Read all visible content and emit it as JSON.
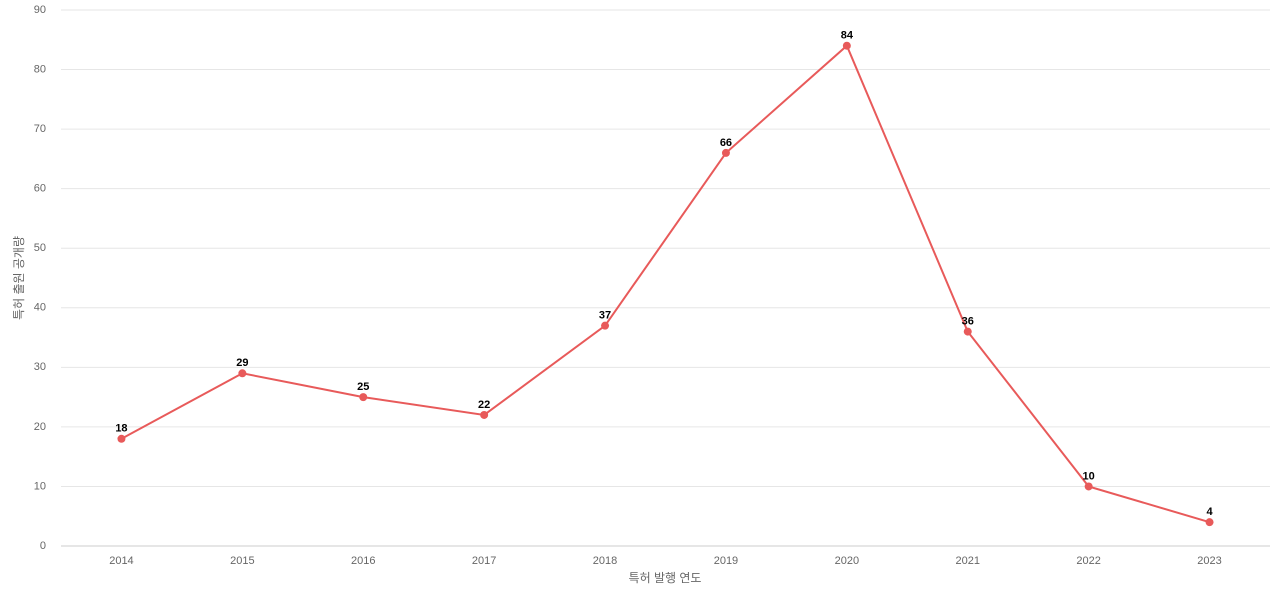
{
  "chart_data": {
    "type": "line",
    "x_label": "특허 발행 연도",
    "y_label": "특허 출원 공개량",
    "categories": [
      "2014",
      "2015",
      "2016",
      "2017",
      "2018",
      "2019",
      "2020",
      "2021",
      "2022",
      "2023"
    ],
    "series": [
      {
        "name": "특허 출원 공개량",
        "color": "#e85a5a",
        "values": [
          18,
          29,
          25,
          22,
          37,
          66,
          84,
          36,
          10,
          4
        ]
      }
    ],
    "ylim": [
      0,
      90
    ],
    "yticks": [
      0,
      10,
      20,
      30,
      40,
      50,
      60,
      70,
      80,
      90
    ],
    "grid": true
  }
}
